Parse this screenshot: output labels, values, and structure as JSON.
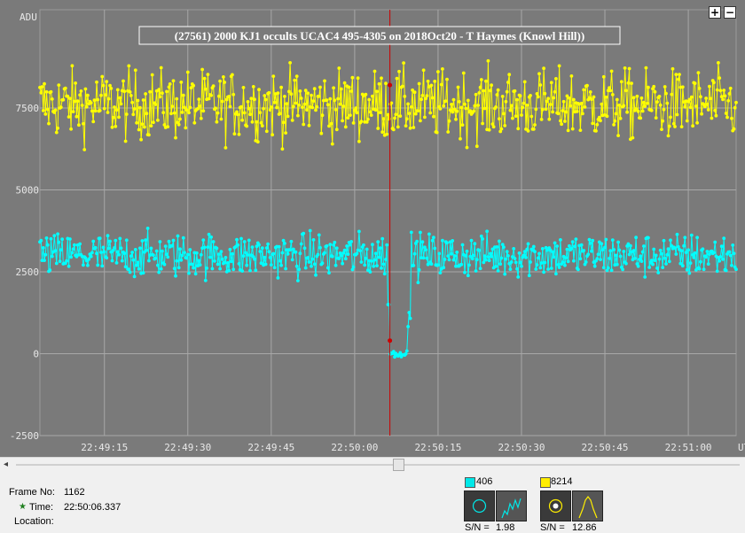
{
  "chart_data": {
    "type": "line",
    "title": "(27561) 2000 KJ1 occults UCAC4 495-4305 on 2018Oct20 - T Haymes (Knowl Hill))",
    "ylabel": "ADU",
    "xlabel": "UT",
    "x_ticks": [
      "22:49:15",
      "22:49:30",
      "22:49:45",
      "22:50:00",
      "22:50:15",
      "22:50:30",
      "22:50:45",
      "22:51:00"
    ],
    "y_ticks": [
      -2500,
      0,
      2500,
      5000,
      7500
    ],
    "ylim": [
      -2500,
      10500
    ],
    "grid": true,
    "event_time": "22:50:06.337",
    "series": [
      {
        "name": "8214",
        "color": "#ffff00",
        "baseline": 7600,
        "noise": 520,
        "dip": null
      },
      {
        "name": "406",
        "color": "#00ffff",
        "baseline": 3000,
        "noise": 330,
        "dip": {
          "start": "22:50:06.2",
          "end": "22:50:09.5",
          "level": 0
        }
      }
    ],
    "cursor_color": "#cc0000"
  },
  "controls": {
    "zoom_in": "+",
    "zoom_out": "−",
    "scroll_left": "◂"
  },
  "info": {
    "frame_label": "Frame No:",
    "frame_value": "1162",
    "time_label": "Time:",
    "time_value": "22:50:06.337",
    "location_label": "Location:",
    "time_icon": "star-icon"
  },
  "targets": [
    {
      "color": "#00e8e8",
      "label": "406",
      "sn_label": "S/N =",
      "sn_value": "1.98"
    },
    {
      "color": "#ffee00",
      "label": "8214",
      "sn_label": "S/N =",
      "sn_value": "12.86"
    }
  ]
}
